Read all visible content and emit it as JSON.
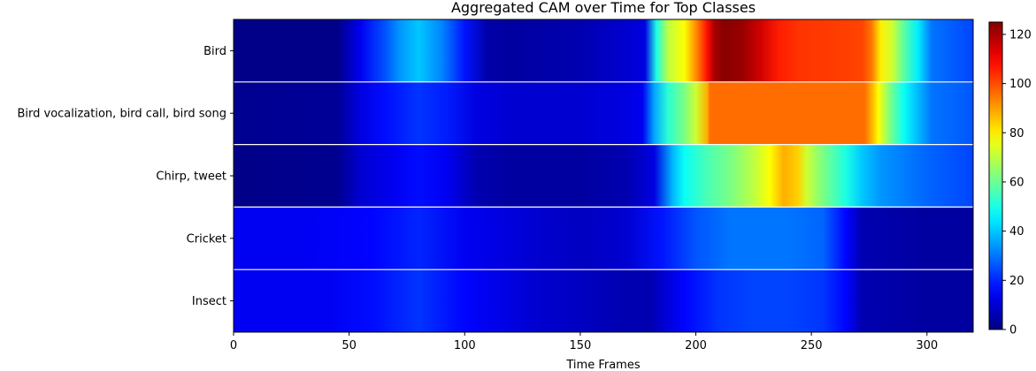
{
  "chart_data": {
    "type": "heatmap",
    "title": "Aggregated CAM over Time for Top Classes",
    "xlabel": "Time Frames",
    "ylabel": "",
    "xlim": [
      0,
      320
    ],
    "x_ticks": [
      0,
      50,
      100,
      150,
      200,
      250,
      300
    ],
    "rows": [
      "Bird",
      "Bird vocalization, bird call, bird song",
      "Chirp, tweet",
      "Cricket",
      "Insect"
    ],
    "colorbar": {
      "colormap": "jet",
      "min": 0,
      "max": 125,
      "ticks": [
        0,
        20,
        40,
        60,
        80,
        100,
        120
      ]
    },
    "series": [
      {
        "name": "Bird",
        "points": [
          [
            0,
            1
          ],
          [
            45,
            1
          ],
          [
            55,
            14
          ],
          [
            65,
            25
          ],
          [
            72,
            34
          ],
          [
            80,
            40
          ],
          [
            90,
            32
          ],
          [
            100,
            18
          ],
          [
            110,
            5
          ],
          [
            120,
            4
          ],
          [
            150,
            6
          ],
          [
            170,
            10
          ],
          [
            178,
            12
          ],
          [
            183,
            50
          ],
          [
            188,
            70
          ],
          [
            195,
            78
          ],
          [
            200,
            92
          ],
          [
            205,
            108
          ],
          [
            208,
            120
          ],
          [
            212,
            124
          ],
          [
            220,
            122
          ],
          [
            228,
            115
          ],
          [
            236,
            106
          ],
          [
            245,
            103
          ],
          [
            260,
            102
          ],
          [
            272,
            101
          ],
          [
            276,
            95
          ],
          [
            280,
            80
          ],
          [
            285,
            72
          ],
          [
            290,
            58
          ],
          [
            296,
            45
          ],
          [
            302,
            30
          ],
          [
            320,
            24
          ]
        ]
      },
      {
        "name": "Bird vocalization, bird call, bird song",
        "points": [
          [
            0,
            2
          ],
          [
            45,
            3
          ],
          [
            55,
            12
          ],
          [
            65,
            17
          ],
          [
            80,
            22
          ],
          [
            92,
            19
          ],
          [
            105,
            12
          ],
          [
            120,
            10
          ],
          [
            150,
            10
          ],
          [
            170,
            12
          ],
          [
            177,
            14
          ],
          [
            182,
            36
          ],
          [
            188,
            52
          ],
          [
            195,
            62
          ],
          [
            200,
            72
          ],
          [
            205,
            88
          ],
          [
            206,
            96
          ],
          [
            240,
            96
          ],
          [
            273,
            96
          ],
          [
            276,
            88
          ],
          [
            279,
            78
          ],
          [
            284,
            62
          ],
          [
            290,
            48
          ],
          [
            295,
            40
          ],
          [
            302,
            30
          ],
          [
            320,
            26
          ]
        ]
      },
      {
        "name": "Chirp, tweet",
        "points": [
          [
            0,
            1
          ],
          [
            45,
            2
          ],
          [
            55,
            10
          ],
          [
            70,
            14
          ],
          [
            80,
            17
          ],
          [
            92,
            14
          ],
          [
            105,
            6
          ],
          [
            120,
            4
          ],
          [
            150,
            4
          ],
          [
            170,
            6
          ],
          [
            182,
            12
          ],
          [
            190,
            38
          ],
          [
            195,
            48
          ],
          [
            205,
            56
          ],
          [
            215,
            62
          ],
          [
            225,
            70
          ],
          [
            232,
            78
          ],
          [
            238,
            88
          ],
          [
            244,
            84
          ],
          [
            248,
            72
          ],
          [
            255,
            62
          ],
          [
            265,
            50
          ],
          [
            272,
            40
          ],
          [
            280,
            34
          ],
          [
            300,
            28
          ],
          [
            320,
            24
          ]
        ]
      },
      {
        "name": "Cricket",
        "points": [
          [
            0,
            14
          ],
          [
            30,
            14
          ],
          [
            60,
            16
          ],
          [
            80,
            20
          ],
          [
            100,
            14
          ],
          [
            130,
            10
          ],
          [
            150,
            8
          ],
          [
            170,
            10
          ],
          [
            185,
            18
          ],
          [
            200,
            26
          ],
          [
            215,
            30
          ],
          [
            240,
            30
          ],
          [
            255,
            28
          ],
          [
            265,
            16
          ],
          [
            272,
            6
          ],
          [
            300,
            4
          ],
          [
            320,
            4
          ]
        ]
      },
      {
        "name": "Insect",
        "points": [
          [
            0,
            14
          ],
          [
            40,
            14
          ],
          [
            60,
            17
          ],
          [
            80,
            22
          ],
          [
            100,
            16
          ],
          [
            130,
            10
          ],
          [
            150,
            8
          ],
          [
            170,
            6
          ],
          [
            180,
            6
          ],
          [
            195,
            16
          ],
          [
            210,
            22
          ],
          [
            225,
            24
          ],
          [
            240,
            24
          ],
          [
            255,
            22
          ],
          [
            265,
            16
          ],
          [
            272,
            6
          ],
          [
            300,
            4
          ],
          [
            320,
            4
          ]
        ]
      }
    ]
  }
}
